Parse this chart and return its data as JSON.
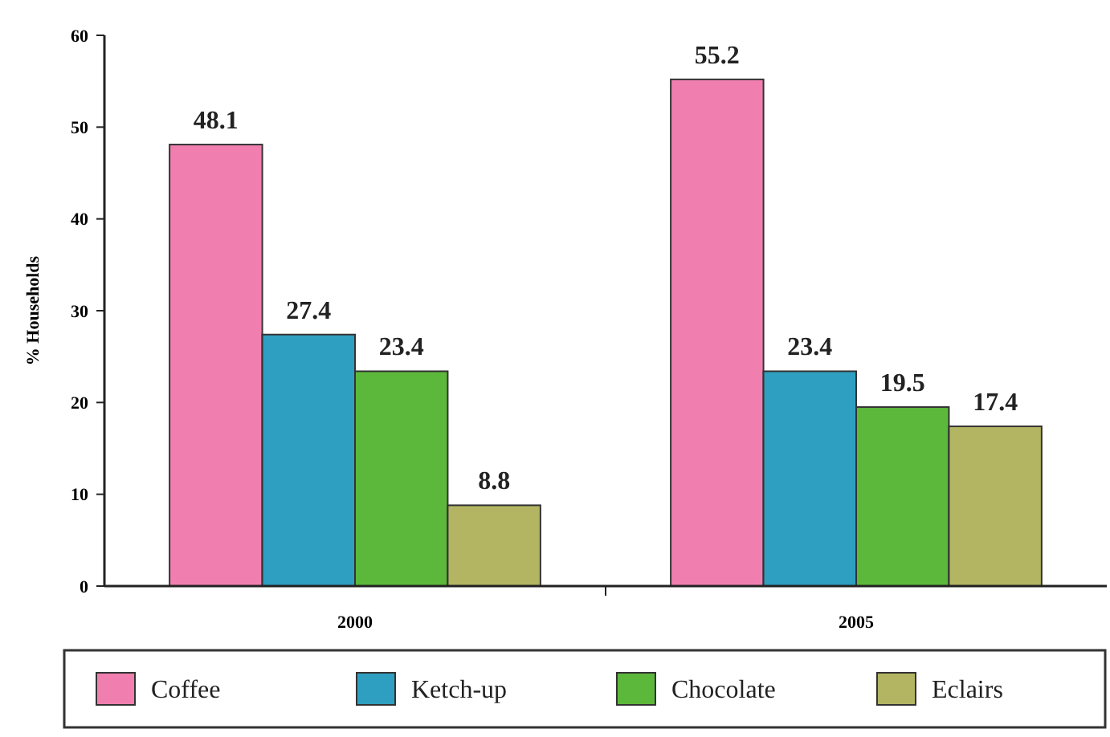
{
  "chart_data": {
    "type": "bar",
    "ylabel": "% Households",
    "categories": [
      "2000",
      "2005"
    ],
    "series": [
      {
        "name": "Coffee",
        "color": "#f07fb0",
        "values": [
          48.1,
          55.2
        ]
      },
      {
        "name": "Ketch-up",
        "color": "#2e9fc0",
        "values": [
          27.4,
          23.4
        ]
      },
      {
        "name": "Chocolate",
        "color": "#5cb83a",
        "values": [
          23.4,
          19.5
        ]
      },
      {
        "name": "Eclairs",
        "color": "#b3b562",
        "values": [
          8.8,
          17.4
        ]
      }
    ],
    "ylim": [
      0,
      60
    ],
    "yticks": [
      0,
      10,
      20,
      30,
      40,
      50,
      60
    ],
    "data_labels": true,
    "legend": "bottom",
    "grid": false
  }
}
